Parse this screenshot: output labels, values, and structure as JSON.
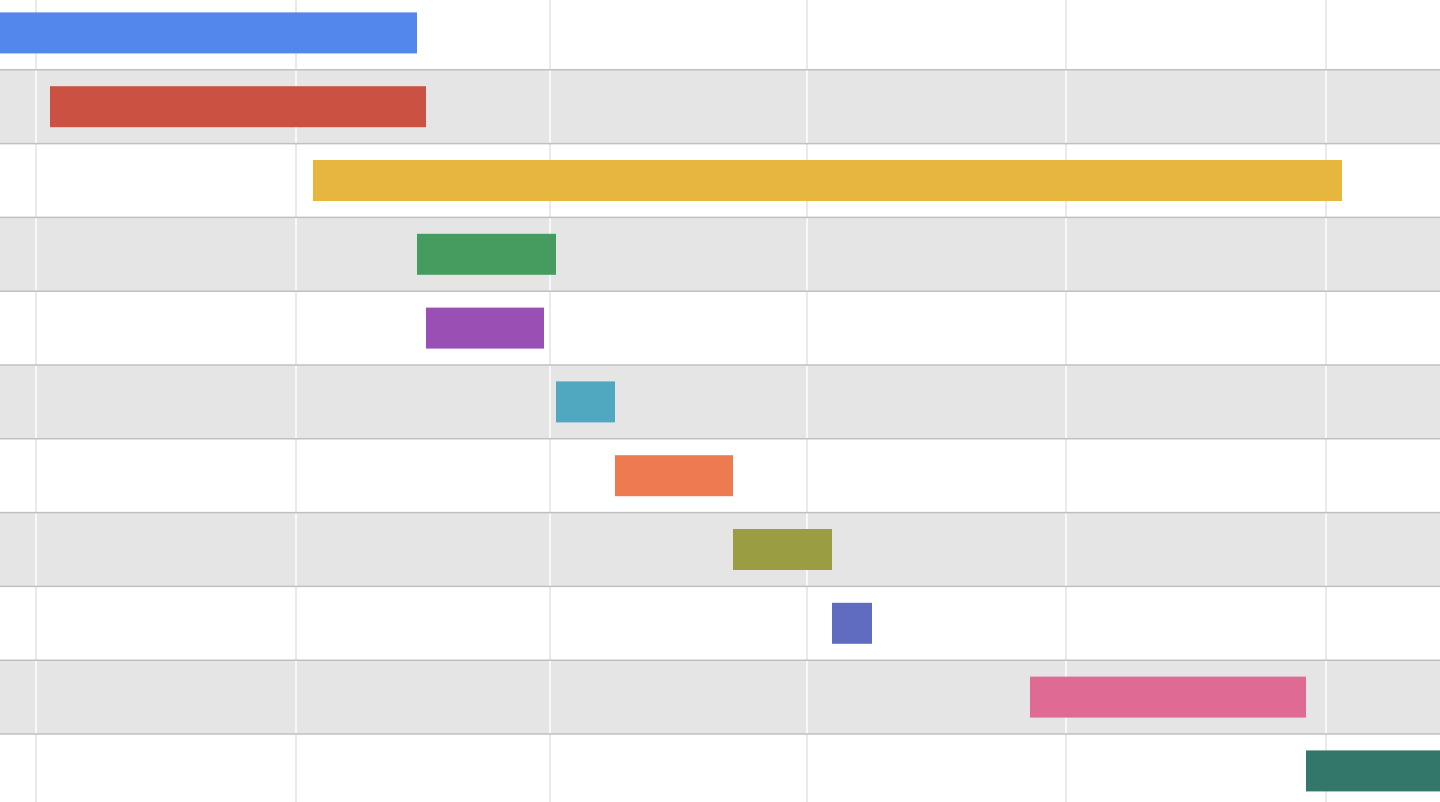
{
  "chart_data": {
    "type": "bar",
    "orientation": "horizontal",
    "style": "gantt",
    "title": "",
    "xlabel": "",
    "ylabel": "",
    "xlim": [
      0,
      1440
    ],
    "grid": true,
    "legend": "none",
    "row_fills": [
      "#ffffff",
      "#e5e5e5"
    ],
    "row_divider_color": "#c0c0c0",
    "gridline_color_light_rows": "#e2e2e2",
    "gridline_color_shaded_rows": "#ffffff",
    "gridline_positions": [
      36,
      296,
      550,
      807,
      1066,
      1326
    ],
    "series": [
      {
        "start": 0,
        "end": 417,
        "color": "#5387ec"
      },
      {
        "start": 50,
        "end": 426,
        "color": "#cb5242"
      },
      {
        "start": 313,
        "end": 1342,
        "color": "#e6b63e"
      },
      {
        "start": 417,
        "end": 556,
        "color": "#469c5f"
      },
      {
        "start": 426,
        "end": 544,
        "color": "#9a4fb4"
      },
      {
        "start": 556,
        "end": 615,
        "color": "#4fa8bf"
      },
      {
        "start": 615,
        "end": 733,
        "color": "#ed7a51"
      },
      {
        "start": 733,
        "end": 832,
        "color": "#9b9d42"
      },
      {
        "start": 832,
        "end": 872,
        "color": "#5f6cbf"
      },
      {
        "start": 1030,
        "end": 1306,
        "color": "#df6a93"
      },
      {
        "start": 1306,
        "end": 1440,
        "color": "#33776b"
      }
    ]
  }
}
